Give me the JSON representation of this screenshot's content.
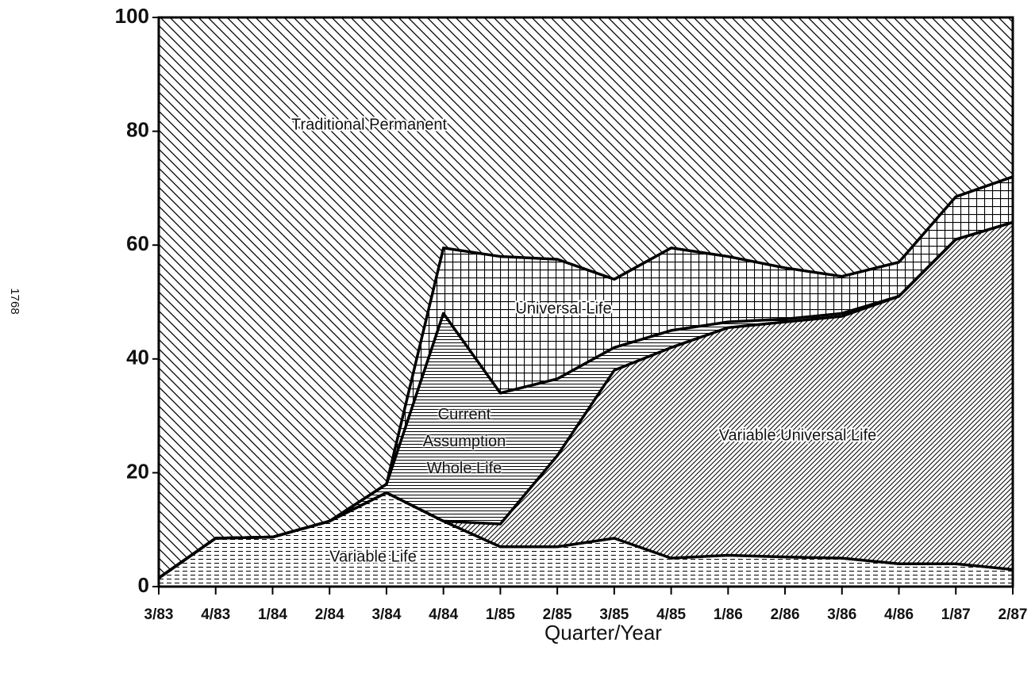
{
  "chart_data": {
    "type": "stacked_area",
    "x_label": "Quarter/Year",
    "annotations": [
      "1768"
    ],
    "categories": [
      "3/83",
      "4/83",
      "1/84",
      "2/84",
      "3/84",
      "4/84",
      "1/85",
      "2/85",
      "3/85",
      "4/85",
      "1/86",
      "2/86",
      "3/86",
      "4/86",
      "1/87",
      "2/87"
    ],
    "ylim": [
      0,
      100
    ],
    "yticks": [
      0,
      20,
      40,
      60,
      80,
      100
    ],
    "series": [
      {
        "name": "Variable Life",
        "color": "#000000",
        "hatch": "dashes",
        "values": [
          1.5,
          8.5,
          8.7,
          11.5,
          16.5,
          11.5,
          7,
          7,
          8.5,
          5,
          5.5,
          5.2,
          5,
          4,
          4,
          3
        ]
      },
      {
        "name": "Variable Universal Life",
        "color": "#000000",
        "hatch": "slash",
        "values": [
          0,
          0,
          0,
          0,
          0,
          0,
          4,
          16,
          29.5,
          37,
          40,
          41.3,
          42.5,
          47,
          57,
          61
        ]
      },
      {
        "name": "Current Assumption Whole Life",
        "color": "#000000",
        "hatch": "horizontal",
        "values": [
          0,
          0,
          0,
          0,
          1.5,
          36.5,
          23,
          13.5,
          4,
          3,
          1,
          0.5,
          0.5,
          0,
          0,
          0
        ]
      },
      {
        "name": "Universal Life",
        "color": "#000000",
        "hatch": "grid",
        "values": [
          0,
          0,
          0,
          0,
          0,
          11.5,
          24,
          21,
          12,
          14.5,
          11.5,
          9,
          6.5,
          6,
          7.5,
          8
        ]
      },
      {
        "name": "Traditional Permanent",
        "color": "#000000",
        "hatch": "backslash",
        "values": [
          98.5,
          91.5,
          91.3,
          88.5,
          82,
          40.5,
          42,
          42.5,
          46,
          40.5,
          42,
          44,
          45.5,
          43,
          31.5,
          28
        ]
      }
    ]
  }
}
